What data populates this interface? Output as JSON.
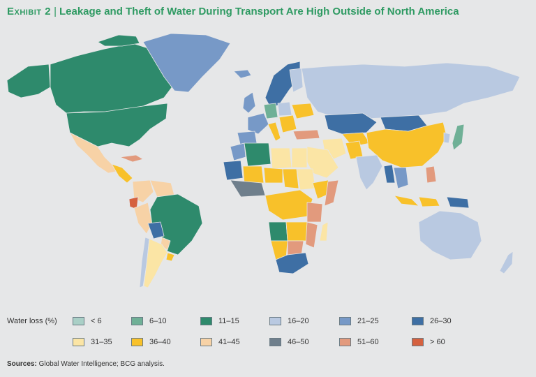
{
  "title": {
    "exhibit": "Exhibit 2",
    "separator": "|",
    "text": "Leakage and Theft of Water During Transport Are High Outside of North America"
  },
  "legend": {
    "title": "Water loss (%)",
    "items": [
      {
        "label": "< 6",
        "color": "#a9cfc6"
      },
      {
        "label": "6–10",
        "color": "#6fb096"
      },
      {
        "label": "11–15",
        "color": "#2e8a6c"
      },
      {
        "label": "16–20",
        "color": "#b9c9e1"
      },
      {
        "label": "21–25",
        "color": "#7799c7"
      },
      {
        "label": "26–30",
        "color": "#3e6fa4"
      },
      {
        "label": "31–35",
        "color": "#fbe5a5"
      },
      {
        "label": "36–40",
        "color": "#f8c12a"
      },
      {
        "label": "41–45",
        "color": "#f7d2a6"
      },
      {
        "label": "46–50",
        "color": "#6f7f8c"
      },
      {
        "label": "51–60",
        "color": "#e29a7d"
      },
      {
        "label": "> 60",
        "color": "#d5613f"
      }
    ]
  },
  "sources": {
    "label": "Sources:",
    "text": "Global Water Intelligence; BCG analysis."
  }
}
